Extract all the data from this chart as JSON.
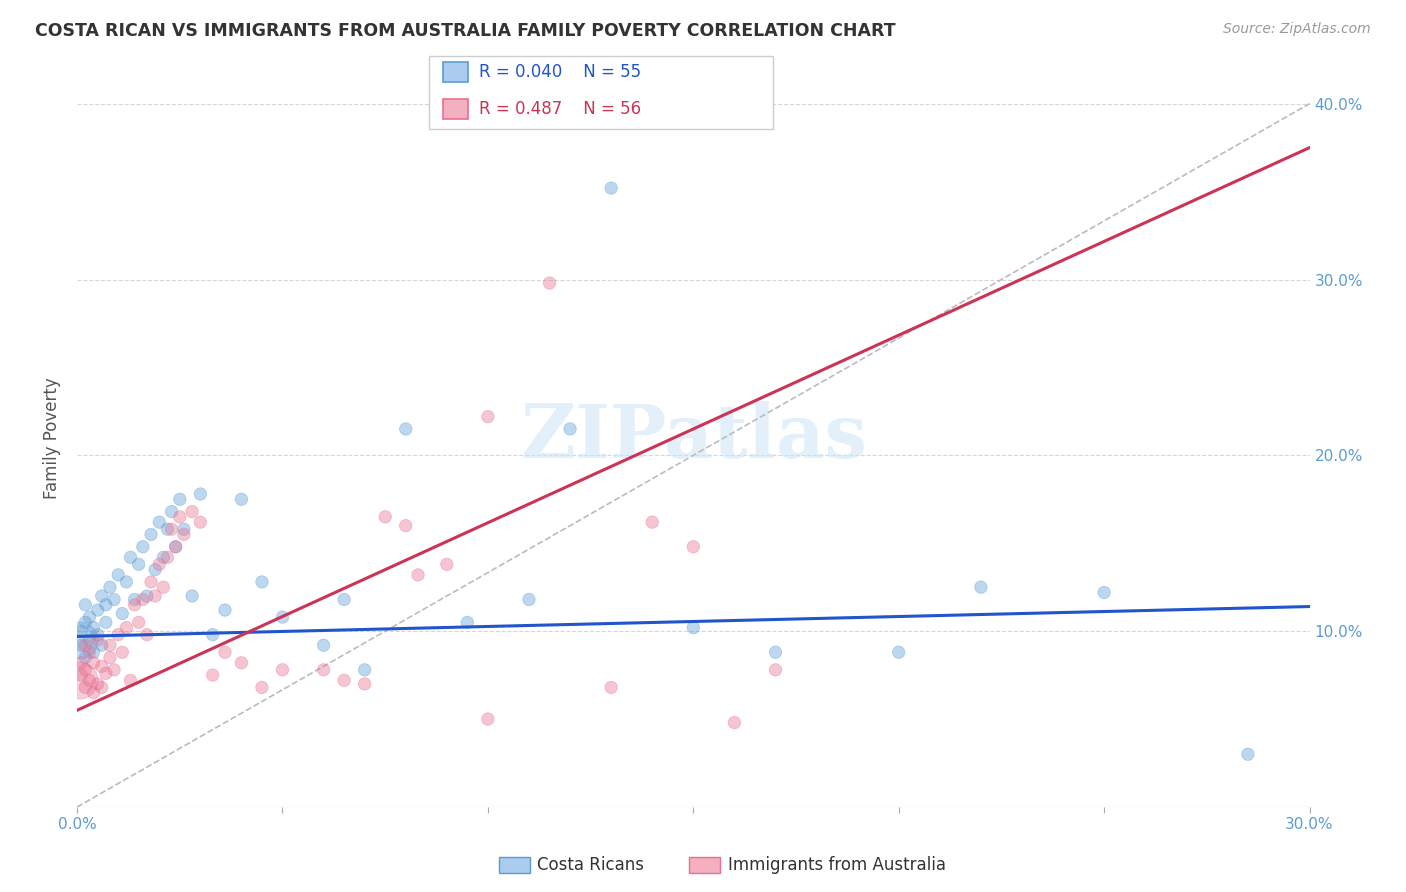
{
  "title": "COSTA RICAN VS IMMIGRANTS FROM AUSTRALIA FAMILY POVERTY CORRELATION CHART",
  "source": "Source: ZipAtlas.com",
  "ylabel": "Family Poverty",
  "xlim": [
    0.0,
    0.3
  ],
  "ylim": [
    0.0,
    0.42
  ],
  "xticks": [
    0.0,
    0.05,
    0.1,
    0.15,
    0.2,
    0.25,
    0.3
  ],
  "yticks": [
    0.0,
    0.1,
    0.2,
    0.3,
    0.4
  ],
  "watermark": "ZIPatlas",
  "legend_R_blue": "0.040",
  "legend_N_blue": "55",
  "legend_R_pink": "0.487",
  "legend_N_pink": "56",
  "blue_color": "#5b9bd5",
  "pink_color": "#e87090",
  "blue_line_color": "#2255cc",
  "pink_line_color": "#cc3355",
  "dashed_color": "#bbbbbb",
  "grid_color": "#cccccc",
  "background_color": "#ffffff",
  "tick_color": "#5b9bd5",
  "title_color": "#333333",
  "source_color": "#999999",
  "ylabel_color": "#555555",
  "blue_line_x": [
    0.0,
    0.3
  ],
  "blue_line_y": [
    0.097,
    0.114
  ],
  "pink_line_x": [
    0.0,
    0.3
  ],
  "pink_line_y": [
    0.055,
    0.375
  ],
  "dashed_line_x": [
    0.0,
    0.3
  ],
  "dashed_line_y": [
    0.0,
    0.4
  ],
  "cr_x": [
    0.001,
    0.001,
    0.002,
    0.002,
    0.002,
    0.003,
    0.003,
    0.004,
    0.004,
    0.005,
    0.005,
    0.006,
    0.006,
    0.007,
    0.007,
    0.008,
    0.009,
    0.01,
    0.011,
    0.012,
    0.013,
    0.014,
    0.015,
    0.016,
    0.017,
    0.018,
    0.019,
    0.02,
    0.021,
    0.022,
    0.023,
    0.024,
    0.025,
    0.026,
    0.028,
    0.03,
    0.033,
    0.036,
    0.04,
    0.045,
    0.05,
    0.06,
    0.065,
    0.07,
    0.08,
    0.095,
    0.11,
    0.13,
    0.15,
    0.17,
    0.2,
    0.22,
    0.25,
    0.285,
    0.12
  ],
  "cr_y": [
    0.1,
    0.092,
    0.105,
    0.085,
    0.115,
    0.095,
    0.108,
    0.088,
    0.102,
    0.112,
    0.098,
    0.12,
    0.092,
    0.105,
    0.115,
    0.125,
    0.118,
    0.132,
    0.11,
    0.128,
    0.142,
    0.118,
    0.138,
    0.148,
    0.12,
    0.155,
    0.135,
    0.162,
    0.142,
    0.158,
    0.168,
    0.148,
    0.175,
    0.158,
    0.12,
    0.178,
    0.098,
    0.112,
    0.175,
    0.128,
    0.108,
    0.092,
    0.118,
    0.078,
    0.215,
    0.105,
    0.118,
    0.352,
    0.102,
    0.088,
    0.088,
    0.125,
    0.122,
    0.03,
    0.215
  ],
  "cr_sizes": [
    80,
    80,
    80,
    80,
    80,
    80,
    80,
    80,
    80,
    80,
    80,
    80,
    80,
    80,
    80,
    80,
    80,
    80,
    80,
    80,
    80,
    80,
    80,
    80,
    80,
    80,
    80,
    80,
    80,
    80,
    80,
    80,
    80,
    80,
    80,
    80,
    80,
    80,
    80,
    80,
    80,
    80,
    80,
    80,
    80,
    80,
    80,
    80,
    80,
    80,
    80,
    80,
    80,
    80,
    80
  ],
  "au_x": [
    0.001,
    0.001,
    0.002,
    0.002,
    0.002,
    0.003,
    0.003,
    0.004,
    0.004,
    0.005,
    0.005,
    0.006,
    0.006,
    0.007,
    0.008,
    0.008,
    0.009,
    0.01,
    0.011,
    0.012,
    0.013,
    0.014,
    0.015,
    0.016,
    0.017,
    0.018,
    0.019,
    0.02,
    0.021,
    0.022,
    0.023,
    0.024,
    0.025,
    0.026,
    0.028,
    0.03,
    0.033,
    0.036,
    0.04,
    0.045,
    0.05,
    0.06,
    0.065,
    0.07,
    0.08,
    0.09,
    0.1,
    0.115,
    0.15,
    0.17,
    0.1,
    0.13,
    0.14,
    0.16,
    0.075,
    0.083
  ],
  "au_y": [
    0.082,
    0.075,
    0.068,
    0.092,
    0.078,
    0.072,
    0.088,
    0.065,
    0.082,
    0.07,
    0.095,
    0.08,
    0.068,
    0.076,
    0.092,
    0.085,
    0.078,
    0.098,
    0.088,
    0.102,
    0.072,
    0.115,
    0.105,
    0.118,
    0.098,
    0.128,
    0.12,
    0.138,
    0.125,
    0.142,
    0.158,
    0.148,
    0.165,
    0.155,
    0.168,
    0.162,
    0.075,
    0.088,
    0.082,
    0.068,
    0.078,
    0.078,
    0.072,
    0.07,
    0.16,
    0.138,
    0.222,
    0.298,
    0.148,
    0.078,
    0.05,
    0.068,
    0.162,
    0.048,
    0.165,
    0.132
  ],
  "au_sizes": [
    80,
    80,
    80,
    80,
    80,
    80,
    80,
    80,
    80,
    80,
    80,
    80,
    80,
    80,
    80,
    80,
    80,
    80,
    80,
    80,
    80,
    80,
    80,
    80,
    80,
    80,
    80,
    80,
    80,
    80,
    80,
    80,
    80,
    80,
    80,
    80,
    80,
    80,
    80,
    80,
    80,
    80,
    80,
    80,
    80,
    80,
    80,
    80,
    80,
    80,
    80,
    80,
    80,
    80,
    80,
    80
  ]
}
